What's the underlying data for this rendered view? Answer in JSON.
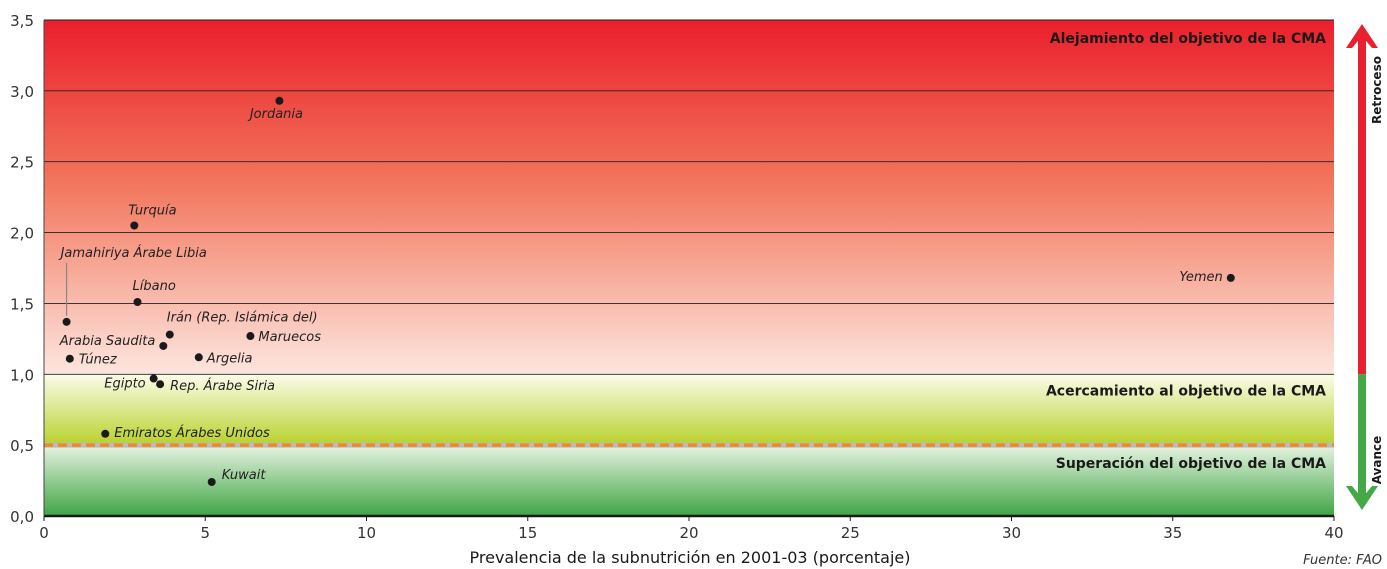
{
  "chart_data": {
    "type": "scatter",
    "xlabel": "Prevalencia de la subnutrición en 2001-03 (porcentaje)",
    "ylabel": "",
    "xlim": [
      0,
      40
    ],
    "ylim": [
      0,
      3.5
    ],
    "x_ticks": [
      0,
      5,
      10,
      15,
      20,
      25,
      30,
      35,
      40
    ],
    "y_ticks": [
      "0,0",
      "0,5",
      "1,0",
      "1,5",
      "2,0",
      "2,5",
      "3,0",
      "3,5"
    ],
    "y_tick_values": [
      0,
      0.5,
      1,
      1.5,
      2,
      2.5,
      3,
      3.5
    ],
    "grid": "horizontal",
    "target_line": 0.5,
    "zones": [
      {
        "label": "Alejamiento del objetivo de la CMA",
        "from": 1.0,
        "to": 3.5,
        "color": "#e8202f"
      },
      {
        "label": "Acercamiento al objetivo de la CMA",
        "from": 0.5,
        "to": 1.0,
        "color": "#bcd52a"
      },
      {
        "label": "Superación del objetivo de la CMA",
        "from": 0.0,
        "to": 0.5,
        "color": "#44a848"
      }
    ],
    "points": [
      {
        "label": "Jordania",
        "x": 7.3,
        "y": 2.93
      },
      {
        "label": "Turquía",
        "x": 2.8,
        "y": 2.05
      },
      {
        "label": "Jamahiriya Árabe Libia",
        "x": 0.7,
        "y": 1.37
      },
      {
        "label": "Líbano",
        "x": 2.9,
        "y": 1.51
      },
      {
        "label": "Irán (Rep. Islámica del)",
        "x": 3.9,
        "y": 1.28
      },
      {
        "label": "Maruecos",
        "x": 6.4,
        "y": 1.27
      },
      {
        "label": "Arabia Saudita",
        "x": 3.7,
        "y": 1.2
      },
      {
        "label": "Túnez",
        "x": 0.8,
        "y": 1.11
      },
      {
        "label": "Argelia",
        "x": 4.8,
        "y": 1.12
      },
      {
        "label": "Egipto",
        "x": 3.4,
        "y": 0.97
      },
      {
        "label": "Rep. Árabe Siria",
        "x": 3.6,
        "y": 0.93
      },
      {
        "label": "Emiratos Árabes Unidos",
        "x": 1.9,
        "y": 0.58
      },
      {
        "label": "Kuwait",
        "x": 5.2,
        "y": 0.24
      },
      {
        "label": "Yemen",
        "x": 36.8,
        "y": 1.68
      }
    ],
    "side_arrow": {
      "up_label": "Retroceso",
      "down_label": "Avance",
      "up_color": "#e8202f",
      "down_color": "#44a848"
    },
    "source": "Fuente: FAO"
  }
}
